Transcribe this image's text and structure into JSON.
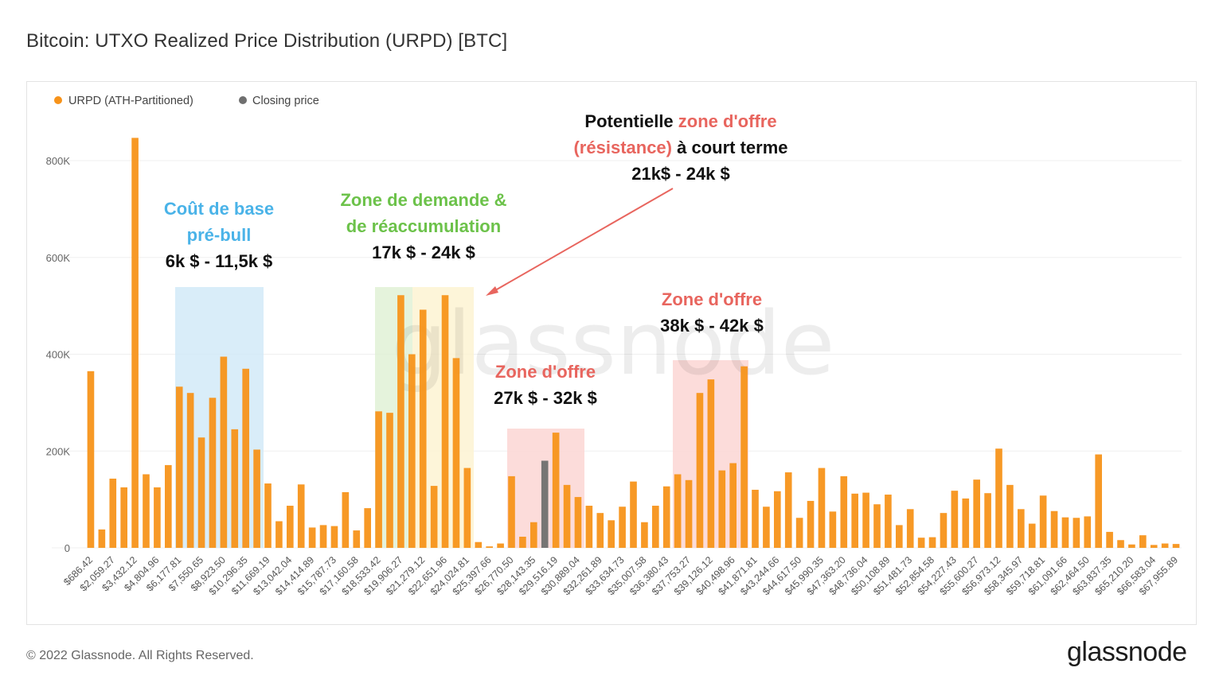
{
  "title": "Bitcoin: UTXO Realized Price Distribution (URPD) [BTC]",
  "footer": "© 2022 Glassnode. All Rights Reserved.",
  "brand": "glassnode",
  "watermark": "glassnode",
  "colors": {
    "urpd": "#f7931a",
    "closing": "#6f6f6f",
    "blue": "#4ab3e8",
    "green": "#6cc24a",
    "red": "#e8655e"
  },
  "chart_data": {
    "type": "bar",
    "title": "Bitcoin: UTXO Realized Price Distribution (URPD) [BTC]",
    "ylim": [
      0,
      850000
    ],
    "yticks": [
      0,
      200000,
      400000,
      600000,
      800000
    ],
    "ytick_labels": [
      "0",
      "200K",
      "400K",
      "600K",
      "800K"
    ],
    "grid": true,
    "legend_placement": "top-left",
    "legend": [
      "URPD (ATH-Partitioned)",
      "Closing price"
    ],
    "x_tick_labels": [
      "$686.42",
      "$2,059.27",
      "$3,432.12",
      "$4,804.96",
      "$6,177.81",
      "$7,550.65",
      "$8,923.50",
      "$10,296.35",
      "$11,669.19",
      "$13,042.04",
      "$14,414.89",
      "$15,787.73",
      "$17,160.58",
      "$18,533.42",
      "$19,906.27",
      "$21,279.12",
      "$22,651.96",
      "$24,024.81",
      "$25,397.66",
      "$26,770.50",
      "$28,143.35",
      "$29,516.19",
      "$30,889.04",
      "$32,261.89",
      "$33,634.73",
      "$35,007.58",
      "$36,380.43",
      "$37,753.27",
      "$39,126.12",
      "$40,498.96",
      "$41,871.81",
      "$43,244.66",
      "$44,617.50",
      "$45,990.35",
      "$47,363.20",
      "$48,736.04",
      "$50,108.89",
      "$51,481.73",
      "$52,854.58",
      "$54,227.43",
      "$55,600.27",
      "$56,973.12",
      "$58,345.97",
      "$59,718.81",
      "$61,091.66",
      "$62,464.50",
      "$63,837.35",
      "$65,210.20",
      "$66,583.04",
      "$67,955.89"
    ],
    "closing_index": 41,
    "series": [
      {
        "name": "URPD (ATH-Partitioned)",
        "values": [
          365000,
          38000,
          143000,
          125000,
          847000,
          152000,
          125000,
          171000,
          333000,
          320000,
          228000,
          310000,
          395000,
          245000,
          370000,
          203000,
          133000,
          55000,
          87000,
          131000,
          42000,
          47000,
          45000,
          115000,
          36000,
          82000,
          282000,
          279000,
          522000,
          400000,
          492000,
          128000,
          522000,
          392000,
          165000,
          12000,
          3000,
          9000,
          148000,
          23000,
          53000,
          180000,
          238000,
          130000,
          105000,
          87000,
          72000,
          57000,
          85000,
          137000,
          53000,
          87000,
          127000,
          152000,
          140000,
          320000,
          348000,
          160000,
          175000,
          375000,
          120000,
          85000,
          117000,
          156000,
          62000,
          97000,
          165000,
          75000,
          148000,
          112000,
          114000,
          90000,
          110000,
          47000,
          80000,
          21000,
          22000,
          72000,
          118000,
          102000,
          141000,
          113000,
          205000,
          130000,
          80000,
          50000,
          108000,
          76000,
          63000,
          62000,
          65000,
          193000,
          33000,
          16000,
          7000,
          26000,
          6000,
          9000,
          8000
        ]
      }
    ],
    "annotations": {
      "blue": {
        "line1": "Coût de base",
        "line2": "pré-bull",
        "range": "6k $ - 11,5k $"
      },
      "green": {
        "line1": "Zone de demande &",
        "line2": "de réaccumulation",
        "range": "17k $ - 24k $"
      },
      "top": {
        "a": "Potentielle ",
        "b": "zone d'offre",
        "c": "(résistance)",
        "d": " à court terme",
        "range": "21k$ - 24k $"
      },
      "red1": {
        "line1": "Zone d'offre",
        "range": "27k $ - 32k $"
      },
      "red2": {
        "line1": "Zone d'offre",
        "range": "38k $ - 42k $"
      }
    }
  }
}
